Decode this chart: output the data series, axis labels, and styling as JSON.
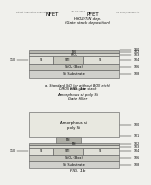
{
  "bg_color": "#f0f0ec",
  "header_text": "Patent Application Publication",
  "header_mid": "Jul. 18, 2013",
  "header_right": "US 2013/0180856 A1",
  "nfet_label": "NFET",
  "pfet_label": "PFET",
  "fig1a": {
    "title_line1": "HfO2/TiN dep.",
    "title_line2": "(Gate stack deposition)",
    "caption_line1": "a. Standard S/D (or without BOX etch)",
    "caption_line2": "CMOS with gate stack",
    "fig_label": "FIG. 1a"
  },
  "fig1b": {
    "title_line1": "Amorphous si poly Si",
    "title_line2": "Gate filler",
    "top_block_label_1": "Amorphous si",
    "top_block_label_2": "poly Si",
    "fig_label": "FIG. 1b"
  }
}
